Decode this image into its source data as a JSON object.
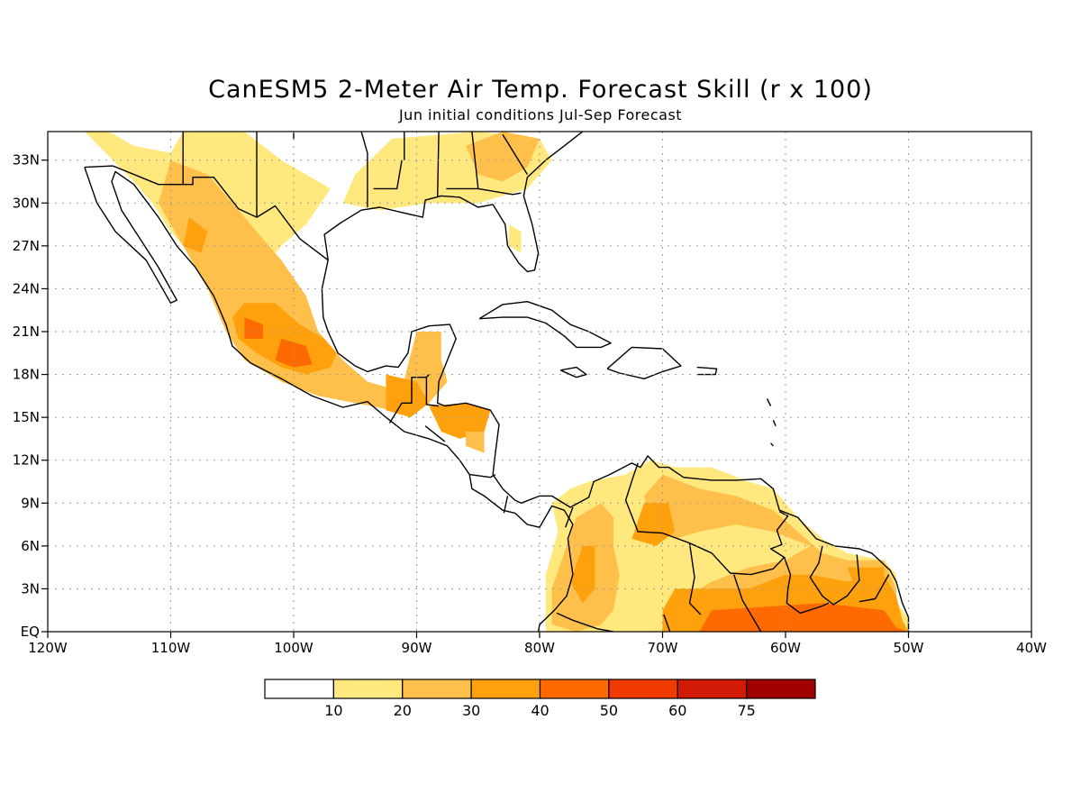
{
  "title": "CanESM5 2-Meter Air Temp. Forecast Skill (r x 100)",
  "subtitle": "Jun initial conditions  Jul-Sep Forecast",
  "map": {
    "lon_range": [
      -120,
      -40
    ],
    "lat_range": [
      0,
      35
    ],
    "lon_ticks": [
      {
        "v": -120,
        "label": "120W"
      },
      {
        "v": -110,
        "label": "110W"
      },
      {
        "v": -100,
        "label": "100W"
      },
      {
        "v": -90,
        "label": "90W"
      },
      {
        "v": -80,
        "label": "80W"
      },
      {
        "v": -70,
        "label": "70W"
      },
      {
        "v": -60,
        "label": "60W"
      },
      {
        "v": -50,
        "label": "50W"
      },
      {
        "v": -40,
        "label": "40W"
      }
    ],
    "lat_ticks": [
      {
        "v": 0,
        "label": "EQ"
      },
      {
        "v": 3,
        "label": "3N"
      },
      {
        "v": 6,
        "label": "6N"
      },
      {
        "v": 9,
        "label": "9N"
      },
      {
        "v": 12,
        "label": "12N"
      },
      {
        "v": 15,
        "label": "15N"
      },
      {
        "v": 18,
        "label": "18N"
      },
      {
        "v": 21,
        "label": "21N"
      },
      {
        "v": 24,
        "label": "24N"
      },
      {
        "v": 27,
        "label": "27N"
      },
      {
        "v": 30,
        "label": "30N"
      },
      {
        "v": 33,
        "label": "33N"
      }
    ],
    "grid": true,
    "skill_regions": [
      {
        "level": 1,
        "pts": [
          [
            -117,
            35
          ],
          [
            -115,
            35
          ],
          [
            -113,
            34
          ],
          [
            -110,
            33.5
          ],
          [
            -109,
            35
          ],
          [
            -104,
            35
          ],
          [
            -101,
            33
          ],
          [
            -97,
            31
          ],
          [
            -99,
            28.5
          ],
          [
            -101,
            27
          ],
          [
            -103,
            25
          ],
          [
            -105,
            22.5
          ],
          [
            -106.5,
            23.5
          ],
          [
            -108,
            26
          ],
          [
            -110,
            28
          ],
          [
            -111.5,
            30
          ],
          [
            -113,
            31.5
          ]
        ]
      },
      {
        "level": 2,
        "pts": [
          [
            -110,
            33
          ],
          [
            -107,
            32
          ],
          [
            -105,
            30
          ],
          [
            -103,
            28
          ],
          [
            -101,
            26
          ],
          [
            -99,
            23.5
          ],
          [
            -98,
            21
          ],
          [
            -96,
            19
          ],
          [
            -94,
            17.5
          ],
          [
            -92,
            17
          ],
          [
            -92,
            15.5
          ],
          [
            -95,
            16
          ],
          [
            -98,
            16.5
          ],
          [
            -101,
            17.5
          ],
          [
            -104,
            19
          ],
          [
            -105.5,
            21
          ],
          [
            -107,
            24
          ],
          [
            -109,
            27
          ],
          [
            -111,
            30
          ]
        ]
      },
      {
        "level": 1,
        "pts": [
          [
            -96,
            30
          ],
          [
            -95,
            32
          ],
          [
            -92,
            34.5
          ],
          [
            -85,
            35
          ],
          [
            -80,
            34.5
          ],
          [
            -79,
            33
          ],
          [
            -81,
            31
          ],
          [
            -85,
            30
          ],
          [
            -89,
            30
          ],
          [
            -93,
            29.5
          ]
        ]
      },
      {
        "level": 2,
        "pts": [
          [
            -86,
            34
          ],
          [
            -83,
            35
          ],
          [
            -80,
            34.5
          ],
          [
            -81,
            32.5
          ],
          [
            -83,
            31.5
          ],
          [
            -85,
            32
          ]
        ]
      },
      {
        "level": 3,
        "pts": [
          [
            -108.5,
            29
          ],
          [
            -107,
            28
          ],
          [
            -107.5,
            26.5
          ],
          [
            -109,
            27
          ]
        ]
      },
      {
        "level": 3,
        "pts": [
          [
            -104,
            23
          ],
          [
            -101.5,
            23
          ],
          [
            -99.5,
            21.5
          ],
          [
            -97.5,
            20.5
          ],
          [
            -96.5,
            19.5
          ],
          [
            -97,
            18.5
          ],
          [
            -99,
            18
          ],
          [
            -101,
            18.5
          ],
          [
            -103,
            19.5
          ],
          [
            -104.5,
            20.5
          ],
          [
            -105,
            22
          ]
        ]
      },
      {
        "level": 4,
        "pts": [
          [
            -104,
            22
          ],
          [
            -102.5,
            21.5
          ],
          [
            -102.5,
            20.5
          ],
          [
            -104,
            20.5
          ]
        ]
      },
      {
        "level": 4,
        "pts": [
          [
            -101,
            20.5
          ],
          [
            -99,
            20
          ],
          [
            -98.5,
            18.7
          ],
          [
            -100,
            18.5
          ],
          [
            -101.5,
            19
          ]
        ]
      },
      {
        "level": 2,
        "pts": [
          [
            -90,
            21
          ],
          [
            -88,
            21
          ],
          [
            -88,
            19
          ],
          [
            -87.5,
            17.5
          ],
          [
            -89,
            16
          ],
          [
            -91.5,
            16
          ]
        ]
      },
      {
        "level": 3,
        "pts": [
          [
            -92.5,
            18
          ],
          [
            -90,
            17.5
          ],
          [
            -89,
            16
          ],
          [
            -90.5,
            15
          ],
          [
            -92.5,
            15.5
          ]
        ]
      },
      {
        "level": 3,
        "pts": [
          [
            -89,
            15.8
          ],
          [
            -86,
            16
          ],
          [
            -84,
            15.5
          ],
          [
            -84.5,
            14
          ],
          [
            -86.5,
            13.5
          ],
          [
            -88,
            14
          ]
        ]
      },
      {
        "level": 2,
        "pts": [
          [
            -86,
            14
          ],
          [
            -84.5,
            14
          ],
          [
            -84.5,
            12.5
          ],
          [
            -86,
            13
          ]
        ]
      },
      {
        "level": 1,
        "pts": [
          [
            -82.5,
            28.5
          ],
          [
            -81.5,
            28
          ],
          [
            -81.5,
            26.5
          ],
          [
            -82.5,
            27
          ]
        ]
      },
      {
        "level": 1,
        "pts": [
          [
            -79,
            9
          ],
          [
            -77.5,
            10
          ],
          [
            -76,
            10.5
          ],
          [
            -73,
            11
          ],
          [
            -71,
            12
          ],
          [
            -69,
            11.5
          ],
          [
            -66,
            11.5
          ],
          [
            -63,
            10.5
          ],
          [
            -61,
            10
          ],
          [
            -59,
            8
          ],
          [
            -57,
            6.5
          ],
          [
            -55,
            5.5
          ],
          [
            -52,
            5
          ],
          [
            -51,
            4
          ],
          [
            -51,
            2
          ],
          [
            -50,
            1
          ],
          [
            -50,
            0
          ],
          [
            -79.5,
            0
          ],
          [
            -79.5,
            4
          ],
          [
            -78.5,
            7
          ]
        ]
      },
      {
        "level": 2,
        "pts": [
          [
            -77,
            8
          ],
          [
            -75,
            9
          ],
          [
            -74,
            8
          ],
          [
            -74,
            6
          ],
          [
            -73.5,
            4
          ],
          [
            -74,
            1.5
          ],
          [
            -75,
            0.5
          ],
          [
            -77,
            0
          ],
          [
            -79,
            0.5
          ],
          [
            -79,
            3
          ],
          [
            -78,
            5.5
          ]
        ]
      },
      {
        "level": 2,
        "pts": [
          [
            -70,
            11
          ],
          [
            -67,
            10
          ],
          [
            -64,
            9.5
          ],
          [
            -61,
            8.5
          ],
          [
            -59,
            7
          ],
          [
            -57,
            5.5
          ],
          [
            -55,
            5
          ],
          [
            -52,
            5
          ],
          [
            -51,
            3
          ],
          [
            -51,
            1
          ],
          [
            -50,
            0
          ],
          [
            -70,
            0
          ],
          [
            -69,
            2
          ],
          [
            -66,
            3.5
          ],
          [
            -63,
            4.5
          ],
          [
            -60,
            5
          ],
          [
            -58,
            6
          ],
          [
            -61,
            7
          ],
          [
            -64,
            7.5
          ],
          [
            -67,
            7
          ],
          [
            -69,
            6.5
          ],
          [
            -71,
            7.5
          ],
          [
            -71.5,
            9.5
          ]
        ]
      },
      {
        "level": 3,
        "pts": [
          [
            -69,
            3
          ],
          [
            -63,
            3
          ],
          [
            -60,
            4
          ],
          [
            -58,
            4
          ],
          [
            -55,
            3.5
          ],
          [
            -52,
            4
          ],
          [
            -51,
            2.5
          ],
          [
            -50.5,
            0.8
          ],
          [
            -50,
            0
          ],
          [
            -70,
            0
          ],
          [
            -70,
            1.5
          ]
        ]
      },
      {
        "level": 3,
        "pts": [
          [
            -71.5,
            9
          ],
          [
            -69.5,
            9
          ],
          [
            -69,
            7
          ],
          [
            -70.5,
            6
          ],
          [
            -72.5,
            6.5
          ]
        ]
      },
      {
        "level": 3,
        "pts": [
          [
            -76.5,
            6
          ],
          [
            -75.5,
            6
          ],
          [
            -75.5,
            3
          ],
          [
            -76.5,
            2
          ],
          [
            -77.5,
            3.5
          ]
        ]
      },
      {
        "level": 3,
        "pts": [
          [
            -55,
            4.5
          ],
          [
            -52,
            4.5
          ],
          [
            -52,
            3
          ],
          [
            -54,
            2.5
          ]
        ]
      },
      {
        "level": 4,
        "pts": [
          [
            -66,
            1.5
          ],
          [
            -57,
            2
          ],
          [
            -52,
            1.5
          ],
          [
            -51,
            0.3
          ],
          [
            -50,
            0
          ],
          [
            -67,
            0
          ]
        ]
      }
    ]
  },
  "colorbar": {
    "colors": [
      "#ffffff",
      "#ffe97f",
      "#ffc04b",
      "#ffa10d",
      "#ff6a00",
      "#f03a00",
      "#d21b06",
      "#a00000"
    ],
    "labels": [
      "10",
      "20",
      "30",
      "40",
      "50",
      "60",
      "75"
    ]
  }
}
